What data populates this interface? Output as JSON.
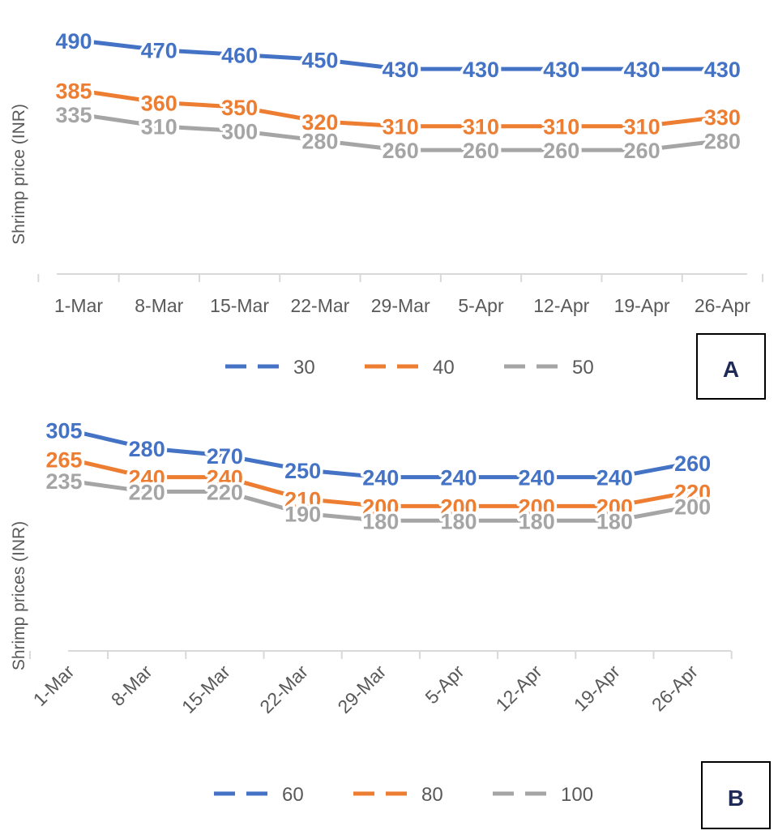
{
  "chart_data": [
    {
      "type": "line",
      "panel_label": "A",
      "ylabel": "Shrimp price (INR)",
      "categories": [
        "1-Mar",
        "8-Mar",
        "15-Mar",
        "22-Mar",
        "29-Mar",
        "5-Apr",
        "12-Apr",
        "19-Apr",
        "26-Apr"
      ],
      "ylim": [
        0,
        530
      ],
      "grid": false,
      "legend": "bottom",
      "series": [
        {
          "name": "30",
          "color": "#4472c4",
          "values": [
            490,
            470,
            460,
            450,
            430,
            430,
            430,
            430,
            430
          ]
        },
        {
          "name": "40",
          "color": "#ed7d31",
          "values": [
            385,
            360,
            350,
            320,
            310,
            310,
            310,
            310,
            330
          ]
        },
        {
          "name": "50",
          "color": "#a5a5a5",
          "values": [
            335,
            310,
            300,
            280,
            260,
            260,
            260,
            260,
            280
          ]
        }
      ]
    },
    {
      "type": "line",
      "panel_label": "B",
      "ylabel": "Shrimp prices (INR)",
      "categories": [
        "1-Mar",
        "8-Mar",
        "15-Mar",
        "22-Mar",
        "29-Mar",
        "5-Apr",
        "12-Apr",
        "19-Apr",
        "26-Apr"
      ],
      "ylim": [
        0,
        330
      ],
      "grid": false,
      "legend": "bottom",
      "series": [
        {
          "name": "60",
          "color": "#4472c4",
          "values": [
            305,
            280,
            270,
            250,
            240,
            240,
            240,
            240,
            260
          ]
        },
        {
          "name": "80",
          "color": "#ed7d31",
          "values": [
            265,
            240,
            240,
            210,
            200,
            200,
            200,
            200,
            220
          ]
        },
        {
          "name": "100",
          "color": "#a5a5a5",
          "values": [
            235,
            220,
            220,
            190,
            180,
            180,
            180,
            180,
            200
          ]
        }
      ]
    }
  ]
}
